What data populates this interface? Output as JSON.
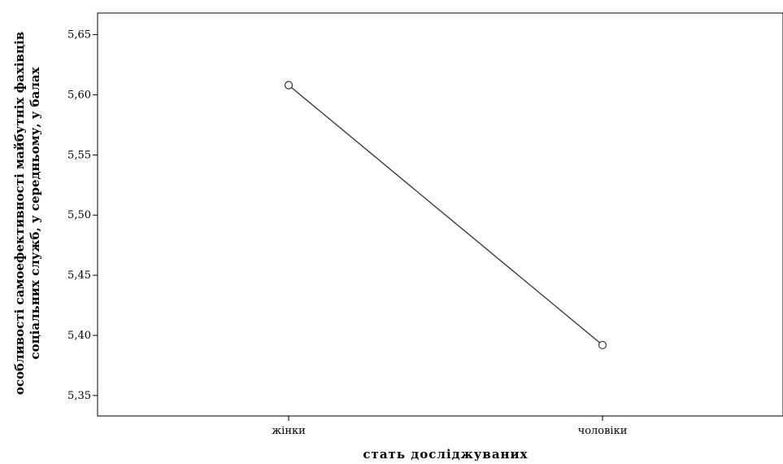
{
  "chart_data": {
    "type": "line",
    "categories": [
      "жінки",
      "чоловіки"
    ],
    "series": [
      {
        "values": [
          5.608,
          5.392
        ]
      }
    ],
    "xlabel": "стать досліджуваних",
    "ylabel_lines": [
      "особливості самоефективності майбутніх фахівців",
      "соціальних служб, у середньому, у балах"
    ],
    "ylim": [
      5.333,
      5.668
    ],
    "yticks": [
      5.35,
      5.4,
      5.45,
      5.5,
      5.55,
      5.6,
      5.65
    ],
    "ytick_labels": [
      "5,35",
      "5,40",
      "5,45",
      "5,50",
      "5,55",
      "5,60",
      "5,65"
    ],
    "grid": false,
    "marker": "open-circle",
    "line_color": "#333333"
  }
}
